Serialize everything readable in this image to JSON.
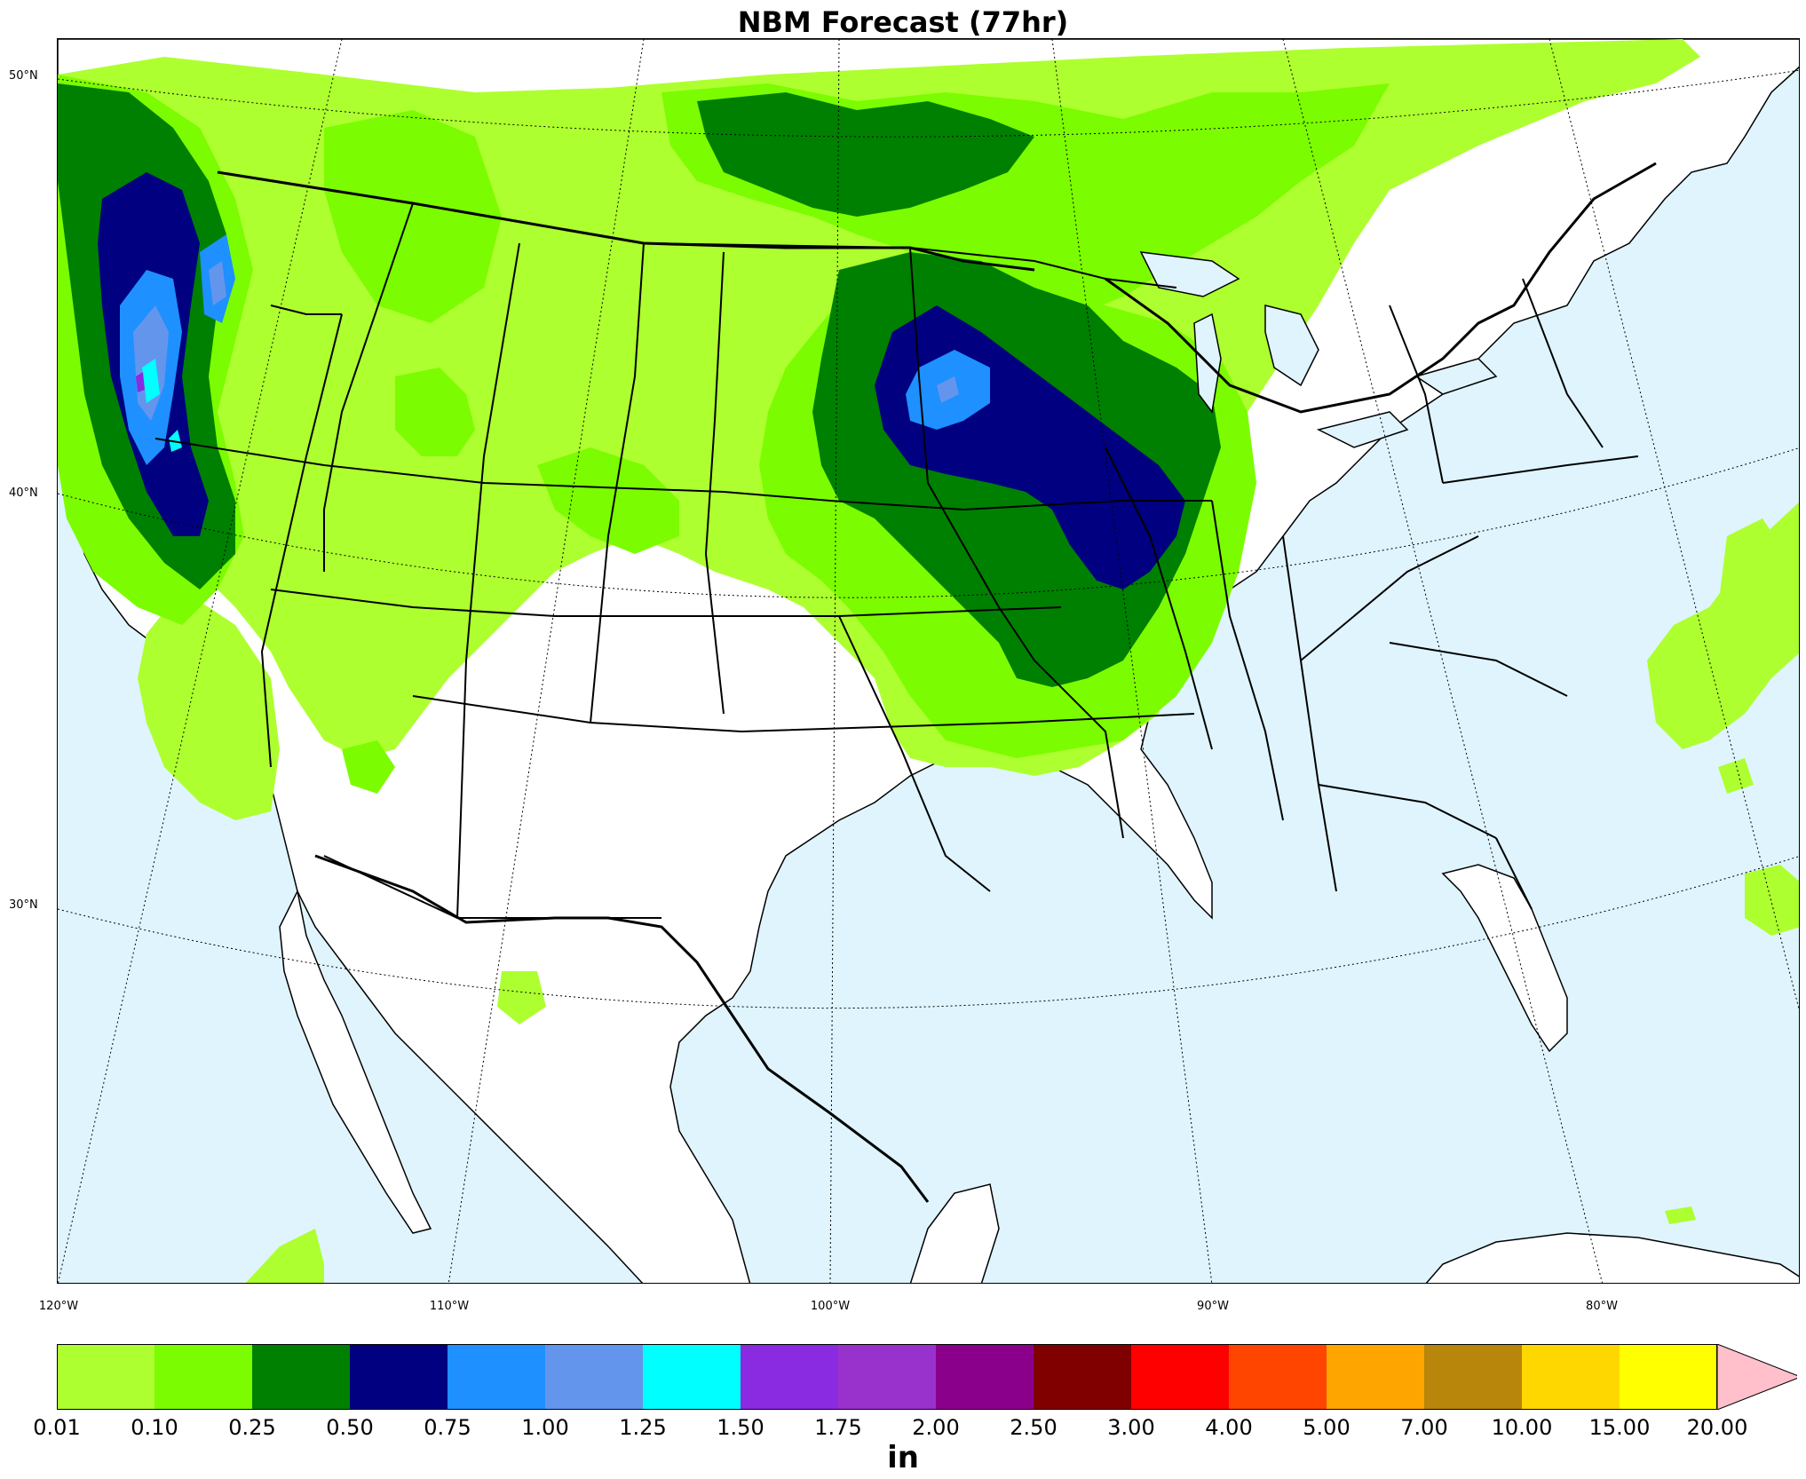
{
  "map": {
    "title": "NBM Forecast (77hr)",
    "lat_labels": [
      "50°N",
      "40°N",
      "30°N"
    ],
    "lon_labels": [
      "120°W",
      "110°W",
      "100°W",
      "90°W",
      "80°W"
    ],
    "water_color": "#dff4fd",
    "land_color": "#ffffff"
  },
  "legend": {
    "units": "in",
    "ticks": [
      "0.01",
      "0.10",
      "0.25",
      "0.50",
      "0.75",
      "1.00",
      "1.25",
      "1.50",
      "1.75",
      "2.00",
      "2.50",
      "3.00",
      "4.00",
      "5.00",
      "7.00",
      "10.00",
      "15.00",
      "20.00"
    ],
    "colors": [
      "#adff2f",
      "#7cfc00",
      "#008000",
      "#000080",
      "#1e90ff",
      "#6495ed",
      "#00ffff",
      "#8a2be2",
      "#9932cc",
      "#8b008b",
      "#800000",
      "#ff0000",
      "#ff4500",
      "#ffa500",
      "#b8860b",
      "#ffd700",
      "#ffff00"
    ],
    "extend_color": "#ffc0cb"
  }
}
